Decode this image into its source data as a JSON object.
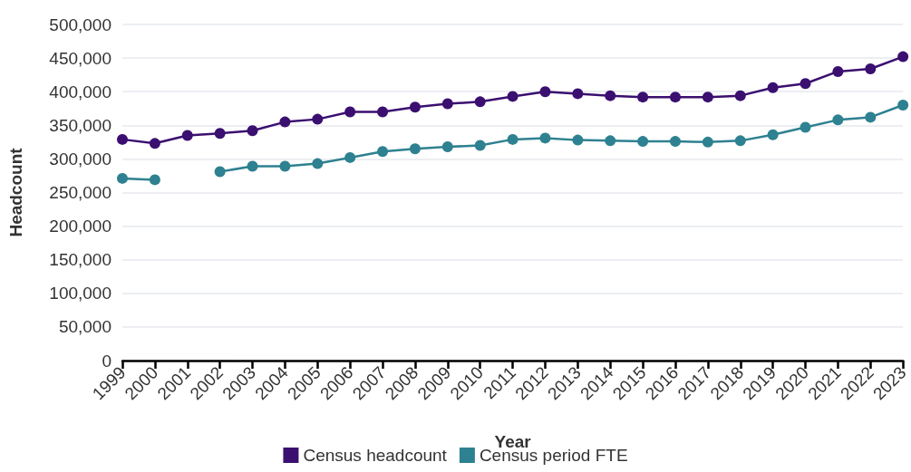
{
  "chart_data": {
    "type": "line",
    "xlabel": "Year",
    "ylabel": "Headcount",
    "categories": [
      "1999",
      "2000",
      "2001",
      "2002",
      "2003",
      "2004",
      "2005",
      "2006",
      "2007",
      "2008",
      "2009",
      "2010",
      "2011",
      "2012",
      "2013",
      "2014",
      "2015",
      "2016",
      "2017",
      "2018",
      "2019",
      "2020",
      "2021",
      "2022",
      "2023"
    ],
    "series": [
      {
        "name": "Census headcount",
        "color": "#3b0f70",
        "values": [
          329000,
          323000,
          335000,
          338000,
          342000,
          355000,
          359000,
          370000,
          370000,
          377000,
          382000,
          385000,
          393000,
          400000,
          397000,
          394000,
          392000,
          392000,
          392000,
          394000,
          406000,
          412000,
          430000,
          434000,
          452000
        ]
      },
      {
        "name": "Census period FTE",
        "color": "#2e8190",
        "values": [
          271000,
          269000,
          null,
          281000,
          289000,
          289000,
          293000,
          302000,
          311000,
          315000,
          318000,
          320000,
          329000,
          331000,
          328000,
          327000,
          326000,
          326000,
          325000,
          327000,
          336000,
          347000,
          358000,
          362000,
          380000
        ]
      }
    ],
    "ylim": [
      0,
      500000
    ],
    "yticks": [
      {
        "value": 0,
        "label": "0"
      },
      {
        "value": 50000,
        "label": "50,000"
      },
      {
        "value": 100000,
        "label": "100,000"
      },
      {
        "value": 150000,
        "label": "150,000"
      },
      {
        "value": 200000,
        "label": "200,000"
      },
      {
        "value": 250000,
        "label": "250,000"
      },
      {
        "value": 300000,
        "label": "300,000"
      },
      {
        "value": 350000,
        "label": "350,000"
      },
      {
        "value": 400000,
        "label": "400,000"
      },
      {
        "value": 450000,
        "label": "450,000"
      },
      {
        "value": 500000,
        "label": "500,000"
      }
    ],
    "grid": "y",
    "legend": "bottom",
    "marker": "circle",
    "line_style": "solid"
  }
}
